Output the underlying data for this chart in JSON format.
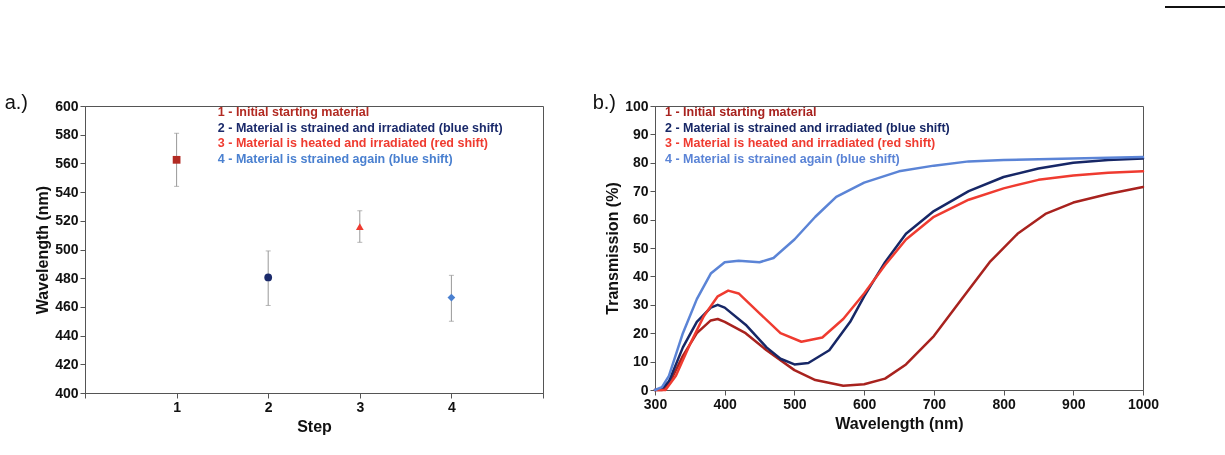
{
  "chart_data": [
    {
      "type": "scatter",
      "title": "a.)",
      "xlabel": "Step",
      "ylabel": "Wavelength (nm)",
      "xlim": [
        0,
        5
      ],
      "xticks": [
        {
          "value": 0,
          "label": null
        },
        1,
        2,
        3,
        4,
        {
          "value": 5,
          "label": null
        }
      ],
      "ylim": [
        400,
        600
      ],
      "yticks": [
        400,
        420,
        440,
        460,
        480,
        500,
        520,
        540,
        560,
        580,
        600
      ],
      "grid": false,
      "legend": "top right",
      "series": [
        {
          "name": "1 - Initial starting material",
          "color": "#b22a22",
          "marker": "square",
          "x": [
            1
          ],
          "values": [
            562.5
          ],
          "errors": [
            [
              544,
              581
            ]
          ]
        },
        {
          "name": "2 - Material is strained and irradiated (blue shift)",
          "color": "#1b2a6b",
          "marker": "circle",
          "x": [
            2
          ],
          "values": [
            480.5
          ],
          "errors": [
            [
              461,
              499
            ]
          ]
        },
        {
          "name": "3 - Material is heated and irradiated (red shift)",
          "color": "#ef3b30",
          "marker": "triangle",
          "x": [
            3
          ],
          "values": [
            516
          ],
          "errors": [
            [
              505,
              527
            ]
          ]
        },
        {
          "name": "4 - Material is strained again (blue shift)",
          "color": "#4a80d0",
          "marker": "diamond",
          "x": [
            4
          ],
          "values": [
            466.5
          ],
          "errors": [
            [
              450,
              482
            ]
          ]
        }
      ]
    },
    {
      "type": "line",
      "title": "b.)",
      "xlabel": "Wavelength (nm)",
      "ylabel": "Transmission (%)",
      "xlim": [
        300,
        1000
      ],
      "xticks": [
        300,
        400,
        500,
        600,
        700,
        800,
        900,
        1000
      ],
      "ylim": [
        0,
        100
      ],
      "yticks": [
        0,
        10,
        20,
        30,
        40,
        50,
        60,
        70,
        80,
        90,
        100
      ],
      "grid": false,
      "legend": "top left",
      "line_style": "solid",
      "series": [
        {
          "name": "1 - Initial starting material",
          "color": "#a8221e",
          "x": [
            300,
            310,
            320,
            340,
            360,
            380,
            390,
            400,
            430,
            460,
            500,
            530,
            570,
            600,
            630,
            660,
            700,
            740,
            780,
            820,
            860,
            900,
            950,
            1000
          ],
          "values": [
            0,
            0,
            2,
            12,
            20,
            24.5,
            25,
            24,
            20,
            14,
            7,
            3.5,
            1.5,
            2,
            4,
            9,
            19,
            32,
            45,
            55,
            62,
            66,
            69,
            71.5
          ]
        },
        {
          "name": "2 - Material is strained and irradiated (blue shift)",
          "color": "#172766",
          "x": [
            300,
            310,
            320,
            340,
            360,
            380,
            390,
            400,
            430,
            460,
            480,
            500,
            520,
            550,
            580,
            600,
            630,
            660,
            700,
            750,
            800,
            850,
            900,
            950,
            1000
          ],
          "values": [
            0,
            0.5,
            3,
            15,
            24,
            29,
            30,
            29,
            23,
            15,
            11,
            9,
            9.5,
            14,
            24,
            33,
            45,
            55,
            63,
            70,
            75,
            78,
            80,
            81,
            81.5
          ]
        },
        {
          "name": "3 - Material is heated and irradiated (red shift)",
          "color": "#ef3b30",
          "x": [
            300,
            315,
            330,
            350,
            370,
            390,
            405,
            420,
            450,
            480,
            510,
            540,
            570,
            600,
            630,
            660,
            700,
            750,
            800,
            850,
            900,
            950,
            1000
          ],
          "values": [
            0,
            0,
            5,
            16,
            26,
            33,
            35,
            34,
            27,
            20,
            17,
            18.5,
            25,
            34,
            44,
            53,
            61,
            67,
            71,
            74,
            75.5,
            76.5,
            77
          ]
        },
        {
          "name": "4 - Material is strained again (blue shift)",
          "color": "#5b84d6",
          "x": [
            300,
            310,
            320,
            340,
            360,
            380,
            400,
            420,
            450,
            470,
            500,
            530,
            560,
            600,
            650,
            700,
            750,
            800,
            900,
            1000
          ],
          "values": [
            0,
            1,
            5,
            20,
            32,
            41,
            45,
            45.5,
            45,
            46.5,
            53,
            61,
            68,
            73,
            77,
            79,
            80.5,
            81,
            81.5,
            82
          ]
        }
      ]
    }
  ]
}
